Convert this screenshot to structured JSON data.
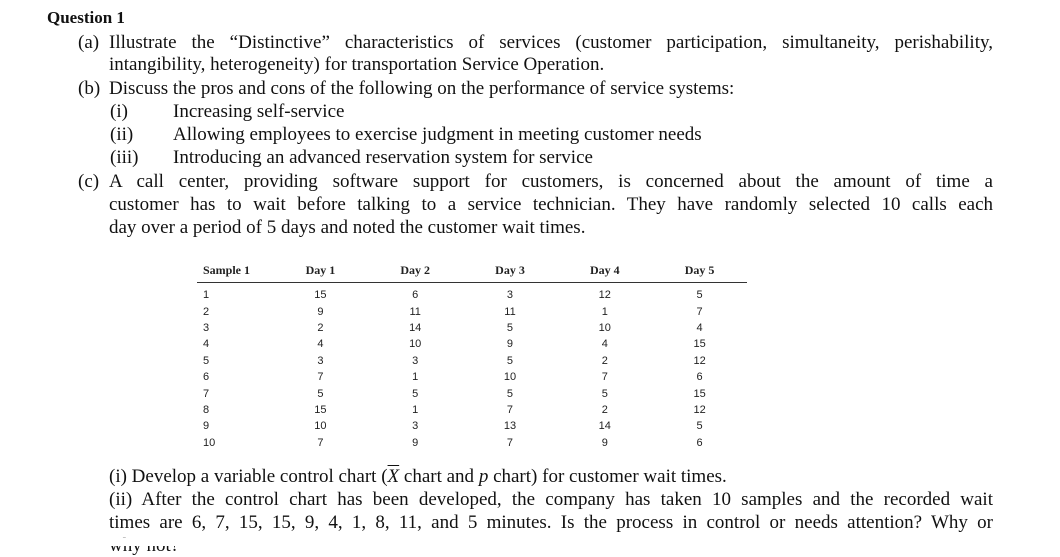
{
  "question": {
    "title": "Question 1",
    "part_a": {
      "label": "(a)",
      "line1": "Illustrate the “Distinctive” characteristics of services (customer participation, simultaneity, perishability,",
      "line2": "intangibility, heterogeneity) for transportation Service Operation."
    },
    "part_b": {
      "label": "(b)",
      "text": "Discuss the pros and cons of the following on the performance of service systems:",
      "items": [
        {
          "num": "(i)",
          "text": "Increasing self-service"
        },
        {
          "num": "(ii)",
          "text": "Allowing employees to exercise judgment in meeting customer needs"
        },
        {
          "num": "(iii)",
          "text": "Introducing an advanced reservation system for service"
        }
      ]
    },
    "part_c": {
      "label": "(c)",
      "line1": "A call center, providing software support for customers, is concerned about the amount of time a",
      "line2": "customer has to wait before talking to a service technician. They have randomly selected 10 calls each",
      "line3": "day over a period of 5 days and noted the customer wait times."
    }
  },
  "table": {
    "headers": [
      "Sample 1",
      "Day 1",
      "Day 2",
      "Day 3",
      "Day 4",
      "Day 5"
    ],
    "rows": [
      [
        "1",
        "15",
        "6",
        "3",
        "12",
        "5"
      ],
      [
        "2",
        "9",
        "11",
        "11",
        "1",
        "7"
      ],
      [
        "3",
        "2",
        "14",
        "5",
        "10",
        "4"
      ],
      [
        "4",
        "4",
        "10",
        "9",
        "4",
        "15"
      ],
      [
        "5",
        "3",
        "3",
        "5",
        "2",
        "12"
      ],
      [
        "6",
        "7",
        "1",
        "10",
        "7",
        "6"
      ],
      [
        "7",
        "5",
        "5",
        "5",
        "5",
        "15"
      ],
      [
        "8",
        "15",
        "1",
        "7",
        "2",
        "12"
      ],
      [
        "9",
        "10",
        "3",
        "13",
        "14",
        "5"
      ],
      [
        "10",
        "7",
        "9",
        "7",
        "9",
        "6"
      ]
    ]
  },
  "followup": {
    "i_prefix": "(i) Develop a variable control chart (",
    "i_x": "X",
    "i_mid": " chart and ",
    "i_p": "p",
    "i_suffix": " chart) for customer wait times.",
    "ii_line1": "(ii) After the control chart has been developed, the company has taken 10 samples and the recorded wait",
    "ii_line2": "times are 6, 7, 15, 15, 9, 4, 1, 8, 11, and 5 minutes. Is the process in control or needs attention? Why or",
    "ii_line3": "why not?"
  }
}
